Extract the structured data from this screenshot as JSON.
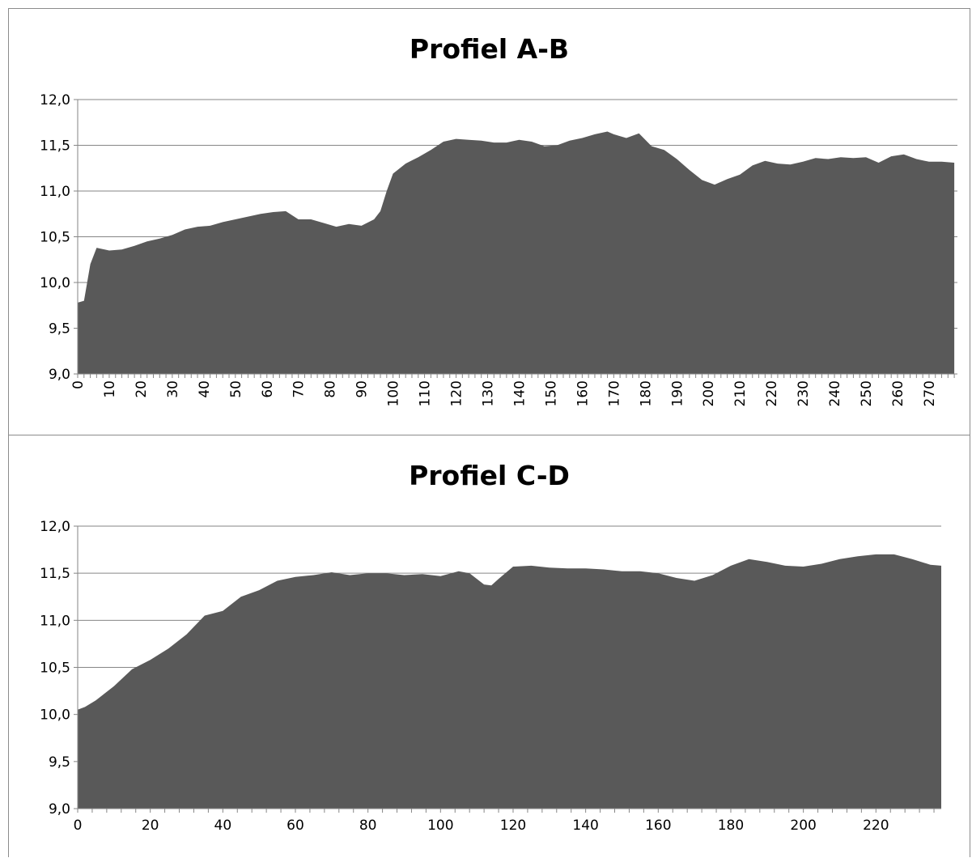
{
  "chart_data": [
    {
      "type": "area",
      "title": "Profiel A-B",
      "xlabel": "",
      "ylabel": "",
      "ylim": [
        9.0,
        12.0
      ],
      "yticks": [
        "9,0",
        "9,5",
        "10,0",
        "10,5",
        "11,0",
        "11,5",
        "12,0"
      ],
      "xlim": [
        0,
        279
      ],
      "xticks": [
        "0",
        "10",
        "20",
        "30",
        "40",
        "50",
        "60",
        "70",
        "80",
        "90",
        "100",
        "110",
        "120",
        "130",
        "140",
        "150",
        "160",
        "170",
        "180",
        "190",
        "200",
        "210",
        "220",
        "230",
        "240",
        "250",
        "260",
        "270"
      ],
      "grid": "horizontal",
      "fill_color": "#595959",
      "x": [
        0,
        2,
        4,
        6,
        10,
        14,
        18,
        22,
        26,
        30,
        34,
        38,
        42,
        46,
        50,
        54,
        58,
        62,
        66,
        70,
        74,
        78,
        82,
        86,
        90,
        94,
        96,
        98,
        100,
        104,
        108,
        112,
        116,
        120,
        124,
        128,
        132,
        136,
        140,
        144,
        148,
        152,
        156,
        160,
        164,
        168,
        170,
        174,
        178,
        182,
        186,
        190,
        194,
        198,
        202,
        206,
        210,
        214,
        218,
        222,
        226,
        230,
        234,
        238,
        242,
        246,
        250,
        254,
        258,
        262,
        266,
        270,
        274,
        278
      ],
      "values": [
        9.78,
        9.8,
        10.2,
        10.38,
        10.35,
        10.36,
        10.4,
        10.45,
        10.48,
        10.52,
        10.58,
        10.61,
        10.62,
        10.66,
        10.69,
        10.72,
        10.75,
        10.77,
        10.78,
        10.69,
        10.69,
        10.65,
        10.61,
        10.64,
        10.62,
        10.69,
        10.78,
        11.0,
        11.19,
        11.3,
        11.37,
        11.45,
        11.54,
        11.57,
        11.56,
        11.55,
        11.53,
        11.53,
        11.56,
        11.54,
        11.49,
        11.5,
        11.55,
        11.58,
        11.62,
        11.65,
        11.62,
        11.58,
        11.63,
        11.49,
        11.45,
        11.35,
        11.23,
        11.12,
        11.07,
        11.13,
        11.18,
        11.28,
        11.33,
        11.3,
        11.29,
        11.32,
        11.36,
        11.35,
        11.37,
        11.36,
        11.37,
        11.31,
        11.38,
        11.4,
        11.35,
        11.32,
        11.32,
        11.31
      ]
    },
    {
      "type": "area",
      "title": "Profiel C-D",
      "xlabel": "",
      "ylabel": "",
      "ylim": [
        9.0,
        12.0
      ],
      "yticks": [
        "9,0",
        "9,5",
        "10,0",
        "10,5",
        "11,0",
        "11,5",
        "12,0"
      ],
      "xlim": [
        0,
        238
      ],
      "xticks": [
        "0",
        "20",
        "40",
        "60",
        "80",
        "100",
        "120",
        "140",
        "160",
        "180",
        "200",
        "220"
      ],
      "grid": "horizontal",
      "fill_color": "#595959",
      "x": [
        0,
        2,
        5,
        10,
        15,
        20,
        25,
        30,
        35,
        40,
        45,
        50,
        55,
        60,
        65,
        70,
        75,
        80,
        85,
        90,
        95,
        100,
        105,
        108,
        112,
        114,
        116,
        120,
        125,
        130,
        135,
        140,
        145,
        150,
        155,
        160,
        165,
        170,
        175,
        180,
        185,
        190,
        195,
        200,
        205,
        210,
        215,
        220,
        225,
        230,
        235,
        238
      ],
      "values": [
        10.05,
        10.08,
        10.15,
        10.3,
        10.48,
        10.58,
        10.7,
        10.85,
        11.05,
        11.1,
        11.25,
        11.32,
        11.42,
        11.46,
        11.48,
        11.51,
        11.48,
        11.5,
        11.5,
        11.48,
        11.49,
        11.47,
        11.52,
        11.5,
        11.38,
        11.37,
        11.44,
        11.57,
        11.58,
        11.56,
        11.55,
        11.55,
        11.54,
        11.52,
        11.52,
        11.5,
        11.45,
        11.42,
        11.48,
        11.58,
        11.65,
        11.62,
        11.58,
        11.57,
        11.6,
        11.65,
        11.68,
        11.7,
        11.7,
        11.65,
        11.59,
        11.58
      ]
    }
  ]
}
